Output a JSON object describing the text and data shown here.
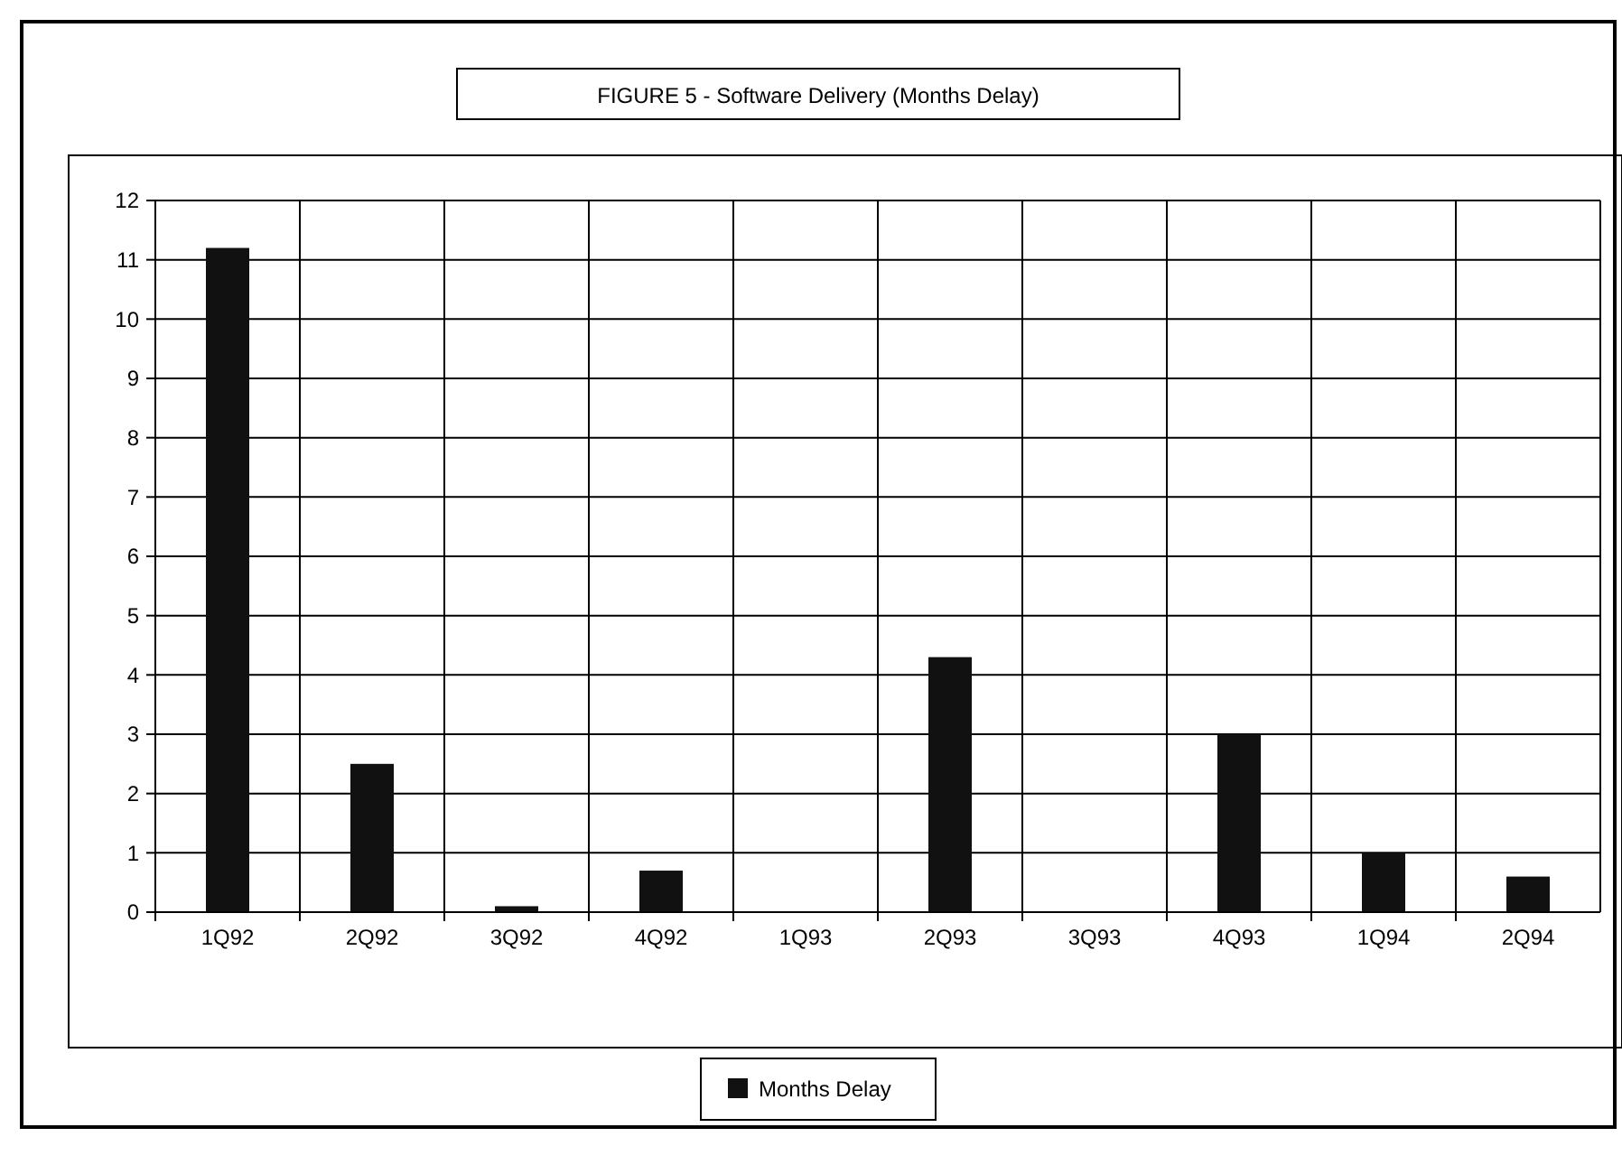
{
  "chart_data": {
    "type": "bar",
    "title": "FIGURE 5 - Software Delivery (Months Delay)",
    "categories": [
      "1Q92",
      "2Q92",
      "3Q92",
      "4Q92",
      "1Q93",
      "2Q93",
      "3Q93",
      "4Q93",
      "1Q94",
      "2Q94"
    ],
    "series": [
      {
        "name": "Months Delay",
        "color": "#111111",
        "values": [
          11.2,
          2.5,
          0.1,
          0.7,
          0,
          4.3,
          0,
          3.0,
          1.0,
          0.6
        ]
      }
    ],
    "ylim": [
      0,
      12
    ],
    "yticks": [
      0,
      1,
      2,
      3,
      4,
      5,
      6,
      7,
      8,
      9,
      10,
      11,
      12
    ],
    "grid": true,
    "legend": "bottom"
  }
}
